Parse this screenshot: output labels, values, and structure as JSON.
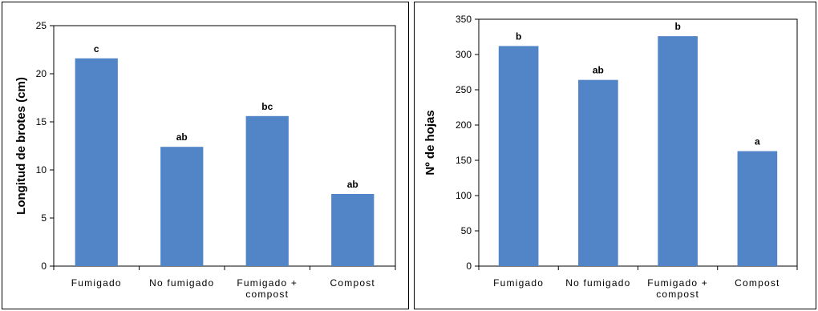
{
  "chart_data": [
    {
      "type": "bar",
      "title": "",
      "xlabel": "",
      "ylabel": "Longitud de brotes (cm)",
      "categories": [
        "Fumigado",
        "No fumigado",
        "Fumigado +\ncompost",
        "Compost"
      ],
      "values": [
        21.6,
        12.4,
        15.6,
        7.5
      ],
      "data_labels": [
        "c",
        "ab",
        "bc",
        "ab"
      ],
      "ylim": [
        0,
        25
      ],
      "yticks": [
        0,
        5,
        10,
        15,
        20,
        25
      ],
      "bar_color": "#5185C8",
      "grid": false,
      "legend": "none"
    },
    {
      "type": "bar",
      "title": "",
      "xlabel": "",
      "ylabel": "Nº de hojas",
      "categories": [
        "Fumigado",
        "No fumigado",
        "Fumigado +\ncompost",
        "Compost"
      ],
      "values": [
        312,
        264,
        326,
        163
      ],
      "data_labels": [
        "b",
        "ab",
        "b",
        "a"
      ],
      "ylim": [
        0,
        350
      ],
      "yticks": [
        0,
        50,
        100,
        150,
        200,
        250,
        300,
        350
      ],
      "bar_color": "#5185C8",
      "grid": false,
      "legend": "none"
    }
  ]
}
